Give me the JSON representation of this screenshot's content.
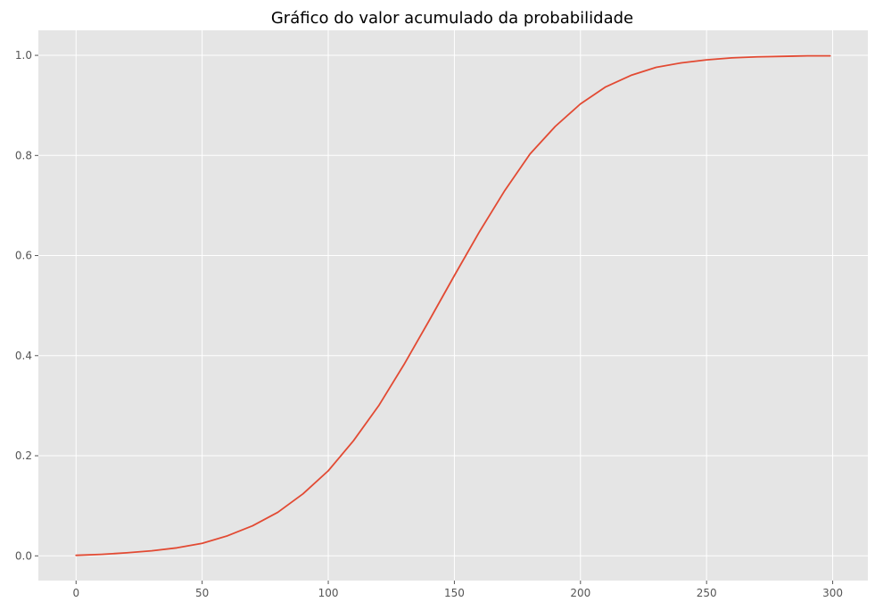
{
  "chart_data": {
    "type": "line",
    "title": "Gráfico do valor acumulado da probabilidade",
    "xlabel": "",
    "ylabel": "",
    "xlim": [
      -14.95,
      313.95
    ],
    "ylim": [
      -0.0494,
      1.05
    ],
    "x_ticks": [
      0,
      50,
      100,
      150,
      200,
      250,
      300
    ],
    "x_tick_labels": [
      "0",
      "50",
      "100",
      "150",
      "200",
      "250",
      "300"
    ],
    "y_ticks": [
      0.0,
      0.2,
      0.4,
      0.6,
      0.8,
      1.0
    ],
    "y_tick_labels": [
      "0.0",
      "0.2",
      "0.4",
      "0.6",
      "0.8",
      "1.0"
    ],
    "grid": true,
    "legend": "none",
    "series": [
      {
        "color": "#e24a33",
        "x": [
          0,
          10,
          20,
          30,
          40,
          50,
          60,
          70,
          80,
          90,
          100,
          110,
          120,
          130,
          140,
          150,
          160,
          170,
          180,
          190,
          200,
          210,
          220,
          230,
          240,
          250,
          260,
          270,
          280,
          290,
          299
        ],
        "y": [
          0.001,
          0.003,
          0.006,
          0.01,
          0.016,
          0.025,
          0.04,
          0.06,
          0.087,
          0.124,
          0.17,
          0.23,
          0.3,
          0.382,
          0.47,
          0.56,
          0.648,
          0.73,
          0.803,
          0.858,
          0.903,
          0.937,
          0.96,
          0.976,
          0.985,
          0.991,
          0.995,
          0.997,
          0.998,
          0.999,
          0.999
        ]
      }
    ],
    "colors": {
      "plot_background": "#e5e5e5",
      "grid": "#ffffff",
      "tick_text": "#555555"
    }
  }
}
